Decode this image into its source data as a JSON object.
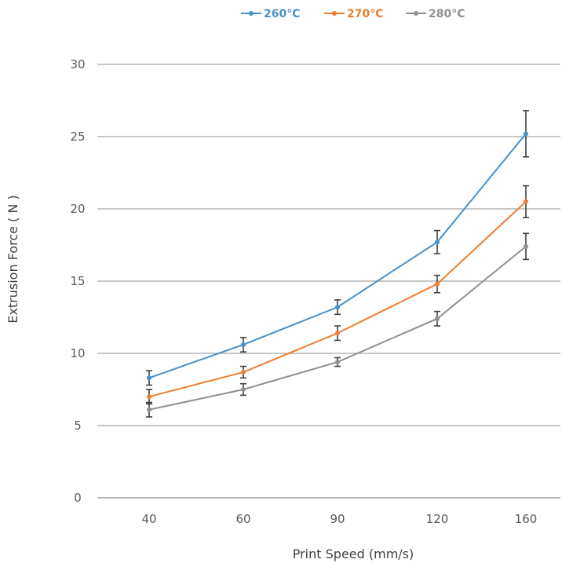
{
  "chart_data": {
    "type": "line",
    "categories": [
      "40",
      "60",
      "90",
      "120",
      "160"
    ],
    "series": [
      {
        "name": "260°C",
        "color": "#4a90c8",
        "values": [
          8.3,
          10.6,
          13.2,
          17.7,
          25.2
        ],
        "errors": [
          0.5,
          0.5,
          0.5,
          0.8,
          1.6
        ]
      },
      {
        "name": "270°C",
        "color": "#ed7d31",
        "values": [
          7.0,
          8.7,
          11.4,
          14.8,
          20.5
        ],
        "errors": [
          0.5,
          0.4,
          0.5,
          0.6,
          1.1
        ]
      },
      {
        "name": "280°C",
        "color": "#909090",
        "values": [
          6.1,
          7.5,
          9.4,
          12.4,
          17.4
        ],
        "errors": [
          0.5,
          0.4,
          0.3,
          0.5,
          0.9
        ]
      }
    ],
    "xlabel": "Print Speed (mm/s)",
    "ylabel": "Extrusion Force ( N )",
    "ylim": [
      0,
      30
    ],
    "yticks": [
      0,
      5,
      10,
      15,
      20,
      25,
      30
    ],
    "grid": true,
    "legend_position": "top"
  }
}
